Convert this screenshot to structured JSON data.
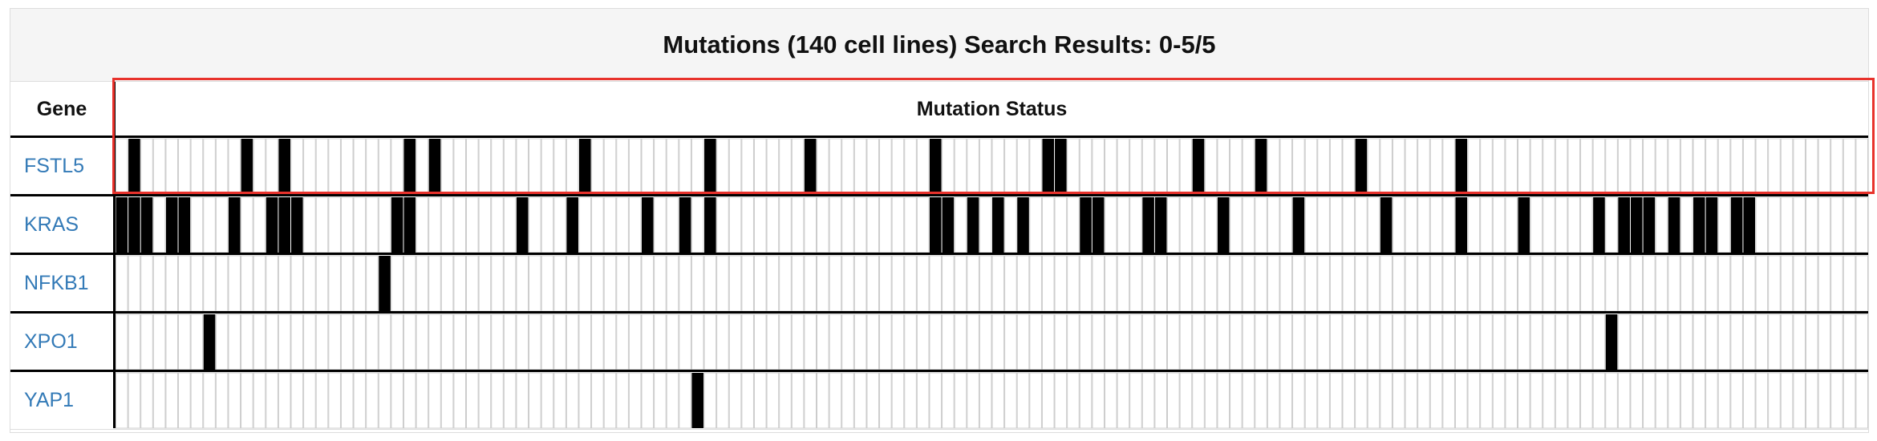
{
  "title": "Mutations (140 cell lines) Search Results: 0-5/5",
  "columns": {
    "gene": "Gene",
    "status": "Mutation Status"
  },
  "colors": {
    "mutated": "#000000",
    "cell_border": "#cccccc",
    "row_divider": "#000000",
    "gene_link": "#337ab7",
    "highlight": "#e8322c"
  },
  "chart_data": {
    "type": "heatmap",
    "title": "Mutations (140 cell lines) Search Results: 0-5/5",
    "cell_line_count": 140,
    "genes": [
      "FSTL5",
      "KRAS",
      "NFKB1",
      "XPO1",
      "YAP1"
    ],
    "mutated_cell_indices": {
      "FSTL5": [
        1,
        10,
        13,
        23,
        25,
        37,
        47,
        55,
        65,
        74,
        75,
        86,
        91,
        99,
        107
      ],
      "KRAS": [
        0,
        1,
        2,
        4,
        5,
        9,
        12,
        13,
        14,
        22,
        23,
        32,
        36,
        42,
        45,
        47,
        65,
        66,
        68,
        70,
        72,
        77,
        78,
        82,
        83,
        88,
        94,
        101,
        107,
        112,
        118,
        120,
        121,
        122,
        124,
        126,
        127,
        129,
        130
      ],
      "NFKB1": [
        21
      ],
      "XPO1": [
        7,
        119
      ],
      "YAP1": [
        46
      ]
    },
    "highlighted_gene": "FSTL5"
  }
}
